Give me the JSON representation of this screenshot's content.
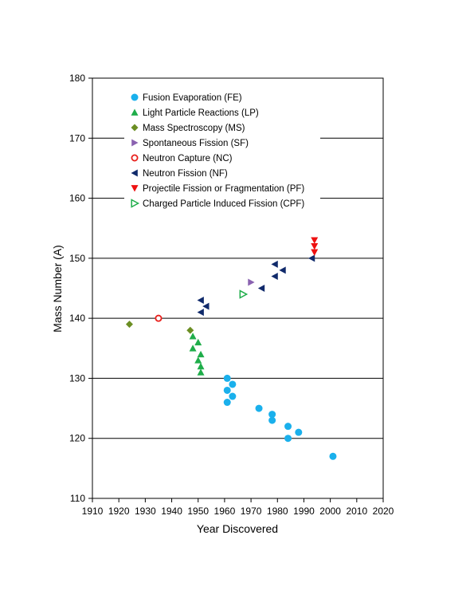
{
  "chart_data": {
    "type": "scatter",
    "title": "",
    "xlabel": "Year Discovered",
    "ylabel": "Mass Number (A)",
    "xlim": [
      1910,
      2020
    ],
    "ylim": [
      110,
      180
    ],
    "xticks": [
      1910,
      1920,
      1930,
      1940,
      1950,
      1960,
      1970,
      1980,
      1990,
      2000,
      2010,
      2020
    ],
    "yticks": [
      110,
      120,
      130,
      140,
      150,
      160,
      170,
      180
    ],
    "grid": "horizontal",
    "legend_position": "top-left",
    "series": [
      {
        "name": "Fusion Evaporation (FE)",
        "marker": "circle",
        "color": "#1ab0ec",
        "points": [
          [
            1961,
            130
          ],
          [
            1961,
            128
          ],
          [
            1961,
            126
          ],
          [
            1963,
            129
          ],
          [
            1963,
            127
          ],
          [
            1973,
            125
          ],
          [
            1978,
            124
          ],
          [
            1978,
            123
          ],
          [
            1984,
            122
          ],
          [
            1984,
            120
          ],
          [
            1988,
            121
          ],
          [
            2001,
            117
          ]
        ]
      },
      {
        "name": "Light Particle Reactions (LP)",
        "marker": "triangle-up",
        "color": "#1fad4a",
        "points": [
          [
            1948,
            137
          ],
          [
            1950,
            136
          ],
          [
            1948,
            135
          ],
          [
            1951,
            134
          ],
          [
            1950,
            133
          ],
          [
            1951,
            132
          ],
          [
            1951,
            131
          ]
        ]
      },
      {
        "name": "Mass Spectroscopy (MS)",
        "marker": "diamond",
        "color": "#6b8e23",
        "points": [
          [
            1924,
            139
          ],
          [
            1947,
            138
          ]
        ]
      },
      {
        "name": "Spontaneous Fission (SF)",
        "marker": "triangle-right",
        "color": "#8a62b0",
        "points": [
          [
            1970,
            146
          ]
        ]
      },
      {
        "name": "Neutron Capture (NC)",
        "marker": "circle-open",
        "color": "#e8201c",
        "points": [
          [
            1935,
            140
          ]
        ]
      },
      {
        "name": "Neutron Fission (NF)",
        "marker": "triangle-left",
        "color": "#102a6b",
        "points": [
          [
            1951,
            143
          ],
          [
            1953,
            142
          ],
          [
            1951,
            141
          ],
          [
            1974,
            145
          ],
          [
            1979,
            149
          ],
          [
            1979,
            147
          ],
          [
            1982,
            148
          ],
          [
            1993,
            150
          ]
        ]
      },
      {
        "name": "Projectile Fission or Fragmentation (PF)",
        "marker": "triangle-down",
        "color": "#ee1111",
        "points": [
          [
            1994,
            153
          ],
          [
            1994,
            152
          ],
          [
            1994,
            151
          ]
        ]
      },
      {
        "name": "Charged Particle Induced Fission (CPF)",
        "marker": "triangle-right-open",
        "color": "#1fad4a",
        "points": [
          [
            1967,
            144
          ]
        ]
      }
    ]
  }
}
